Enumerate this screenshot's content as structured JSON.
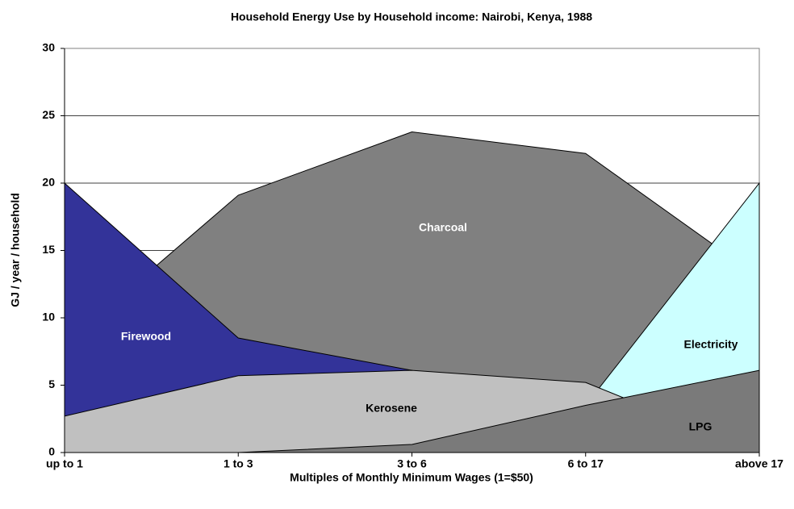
{
  "chart_data": {
    "type": "area",
    "title": "Household Energy Use by Household income: Nairobi, Kenya, 1988",
    "x_label": "Multiples of Monthly Minimum Wages (1=$50)",
    "y_label": "GJ / year / household",
    "categories": [
      "up to 1",
      "1 to 3",
      "3 to 6",
      "6 to 17",
      "above 17"
    ],
    "series": [
      {
        "name": "Charcoal",
        "color": "#808080",
        "values": [
          8,
          19.1,
          23.8,
          22.2,
          13
        ]
      },
      {
        "name": "Firewood",
        "color": "#333399",
        "values": [
          20,
          8.5,
          6.1,
          0,
          0
        ]
      },
      {
        "name": "Electricity",
        "color": "#ccffff",
        "values": [
          0,
          0,
          0,
          3.5,
          20
        ]
      },
      {
        "name": "Kerosene",
        "color": "#c0c0c0",
        "values": [
          2.7,
          5.7,
          6.1,
          5.2,
          0
        ]
      },
      {
        "name": "LPG",
        "color": "#7a7a7a",
        "values": [
          0,
          0,
          0.6,
          3.5,
          6.1
        ]
      }
    ],
    "ylim": [
      0,
      30
    ],
    "yticks": [
      0,
      5,
      10,
      15,
      20,
      25,
      30
    ],
    "grid": true
  }
}
